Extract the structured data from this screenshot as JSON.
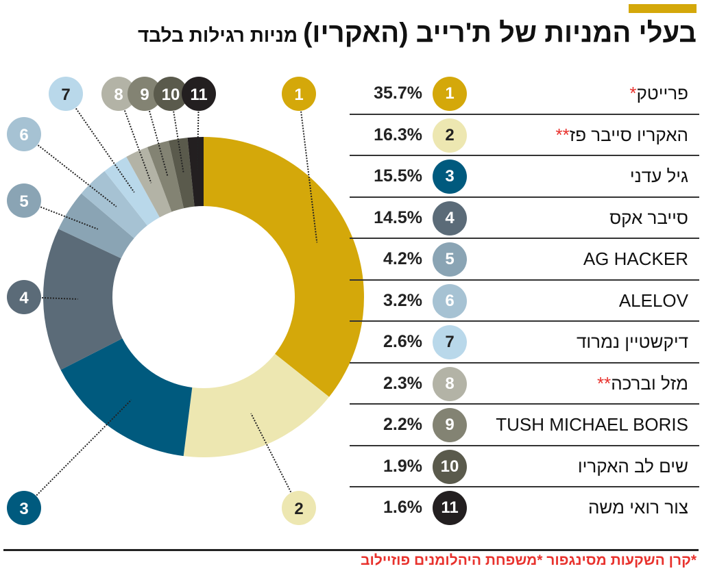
{
  "title": "בעלי המניות של ת'רייב (האקריו)",
  "subtitle": "מניות רגילות בלבד",
  "footnote": "*קרן השקעות מסינגפור *משפחת היהלומנים פוזיילוב",
  "chart_data": {
    "type": "pie",
    "donut": true,
    "categories": [
      "1",
      "2",
      "3",
      "4",
      "5",
      "6",
      "7",
      "8",
      "9",
      "10",
      "11"
    ],
    "labels": [
      "פרייטק",
      "האקריו סייבר פז",
      "גיל עדני",
      "סייבר אקס",
      "AG HACKER",
      "ALELOV",
      "דיקשטיין נמרוד",
      "מזל וברכה",
      "TUSH MICHAEL BORIS",
      "שים לב האקריו",
      "צור רואי משה"
    ],
    "stars": [
      "*",
      "**",
      "",
      "",
      "",
      "",
      "",
      "**",
      "",
      "",
      ""
    ],
    "values": [
      35.7,
      16.3,
      15.5,
      14.5,
      4.2,
      3.2,
      2.6,
      2.3,
      2.2,
      1.9,
      1.6
    ],
    "value_labels": [
      "35.7%",
      "16.3%",
      "15.5%",
      "14.5%",
      "4.2%",
      "3.2%",
      "2.6%",
      "2.3%",
      "2.2%",
      "1.9%",
      "1.6%"
    ],
    "colors": [
      "#d4a80a",
      "#ede7b1",
      "#005a7e",
      "#5b6b78",
      "#8aa4b4",
      "#a6c2d3",
      "#b9d8ea",
      "#b3b3a6",
      "#838373",
      "#5a5a4c",
      "#231f20"
    ],
    "text_colors": [
      "#ffffff",
      "#222222",
      "#ffffff",
      "#ffffff",
      "#ffffff",
      "#ffffff",
      "#222222",
      "#ffffff",
      "#ffffff",
      "#ffffff",
      "#ffffff"
    ],
    "accent": "#d4a80a"
  }
}
